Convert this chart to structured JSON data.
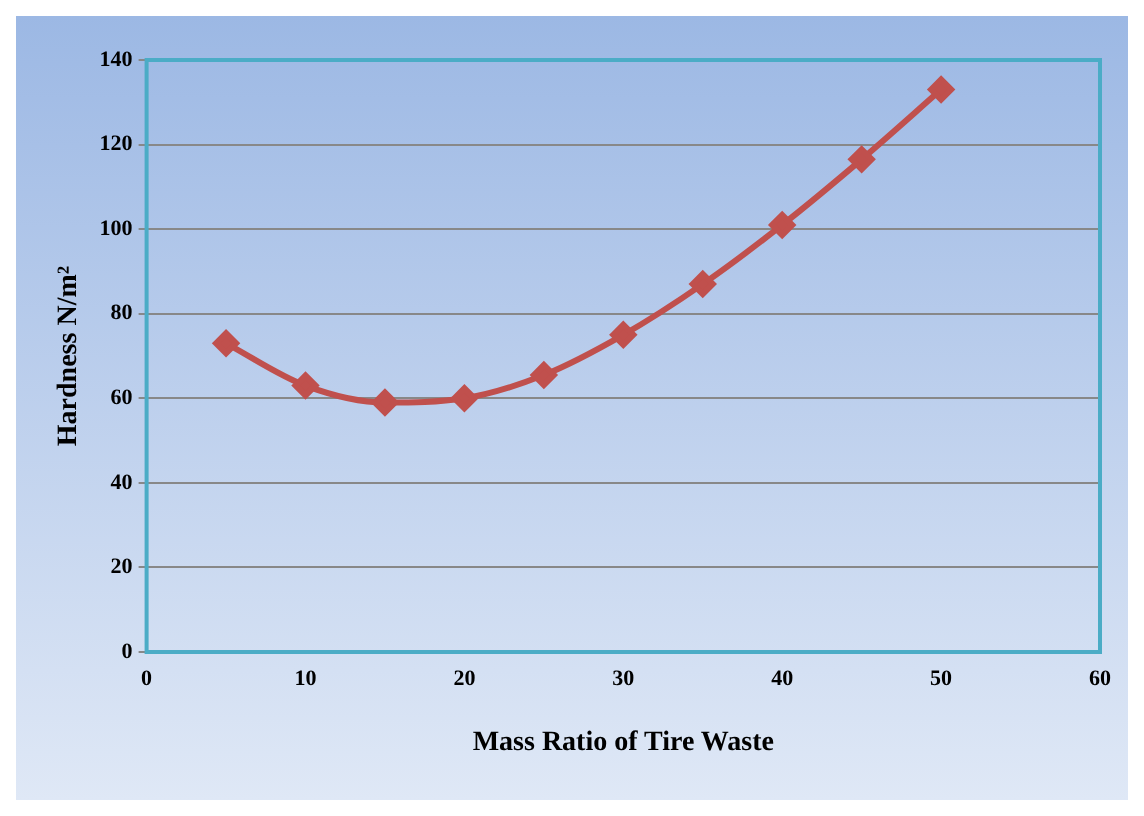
{
  "chart_data": {
    "type": "line",
    "xlabel": "Mass Ratio of Tire Waste",
    "ylabel": "Hardness N/m²",
    "x": [
      5,
      10,
      15,
      20,
      25,
      30,
      35,
      40,
      45,
      50
    ],
    "series": [
      {
        "color": "#c0504d",
        "values": [
          73,
          63,
          59,
          60,
          65.5,
          75,
          87,
          101,
          116.5,
          133
        ]
      }
    ],
    "xlim": [
      0,
      60
    ],
    "xticks": [
      0,
      10,
      20,
      30,
      40,
      50,
      60
    ],
    "ylim": [
      0,
      140
    ],
    "yticks": [
      0,
      20,
      40,
      60,
      80,
      100,
      120,
      140
    ],
    "grid": "y",
    "legend": false,
    "marker": "diamond",
    "line_style": "solid"
  }
}
